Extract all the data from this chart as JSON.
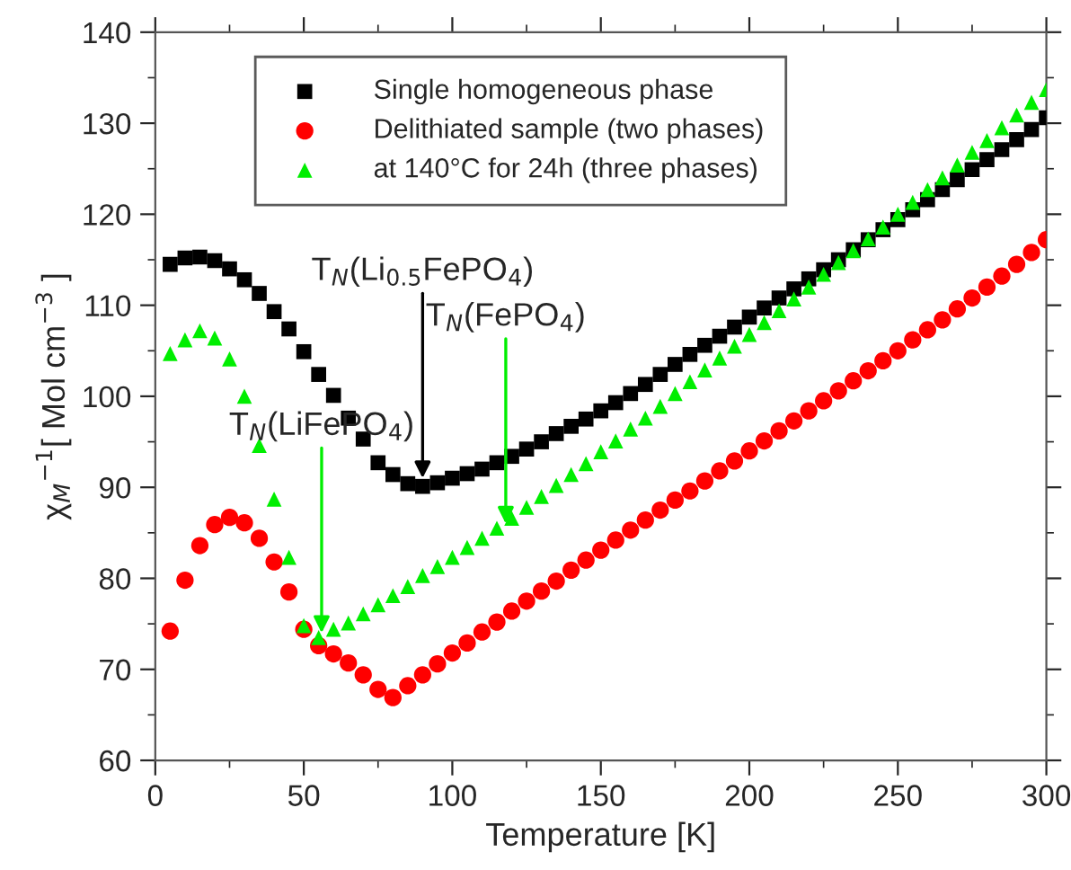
{
  "chart_data": {
    "type": "scatter",
    "xlabel": "Temperature [K]",
    "ylabel": "χ$_{M}$$^{−1}$[ Mol cm$^{−3}$ ]",
    "xlim": [
      0,
      300
    ],
    "xticks": [
      0,
      50,
      100,
      150,
      200,
      250,
      300
    ],
    "ylim": [
      60,
      140
    ],
    "yticks": [
      60,
      70,
      80,
      90,
      100,
      110,
      120,
      130,
      140
    ],
    "grid": false,
    "legend": "top",
    "series": [
      {
        "name": "Single homogeneous phase",
        "color": "#000000",
        "marker": "square",
        "x": [
          5,
          10,
          15,
          20,
          25,
          30,
          35,
          40,
          45,
          50,
          55,
          60,
          65,
          70,
          75,
          80,
          85,
          90,
          95,
          100,
          105,
          110,
          115,
          120,
          125,
          130,
          135,
          140,
          145,
          150,
          155,
          160,
          165,
          170,
          175,
          180,
          185,
          190,
          195,
          200,
          205,
          210,
          215,
          220,
          225,
          230,
          235,
          240,
          245,
          250,
          255,
          260,
          265,
          270,
          275,
          280,
          285,
          290,
          295,
          300
        ],
        "values": [
          114.5,
          115.2,
          115.3,
          114.9,
          114.0,
          112.8,
          111.3,
          109.3,
          107.4,
          104.9,
          102.4,
          100.1,
          97.6,
          95.3,
          92.7,
          91.4,
          90.4,
          90.1,
          90.5,
          91.0,
          91.5,
          92.0,
          92.7,
          93.4,
          94.2,
          95.0,
          95.9,
          96.7,
          97.5,
          98.4,
          99.3,
          100.3,
          101.3,
          102.4,
          103.5,
          104.6,
          105.6,
          106.6,
          107.6,
          108.7,
          109.7,
          110.8,
          111.8,
          112.9,
          113.9,
          115.0,
          116.1,
          117.2,
          118.3,
          119.4,
          120.5,
          121.6,
          122.7,
          123.8,
          124.9,
          126.0,
          127.1,
          128.2,
          129.3,
          130.6
        ]
      },
      {
        "name": "Delithiated sample (two phases)",
        "color": "#ff0000",
        "marker": "circle",
        "x": [
          5,
          10,
          15,
          20,
          25,
          30,
          35,
          40,
          45,
          50,
          55,
          60,
          65,
          70,
          75,
          80,
          85,
          90,
          95,
          100,
          105,
          110,
          115,
          120,
          125,
          130,
          135,
          140,
          145,
          150,
          155,
          160,
          165,
          170,
          175,
          180,
          185,
          190,
          195,
          200,
          205,
          210,
          215,
          220,
          225,
          230,
          235,
          240,
          245,
          250,
          255,
          260,
          265,
          270,
          275,
          280,
          285,
          290,
          295,
          300
        ],
        "values": [
          74.2,
          79.8,
          83.6,
          85.9,
          86.7,
          86.1,
          84.4,
          81.8,
          78.5,
          74.4,
          72.6,
          71.7,
          70.7,
          69.4,
          67.8,
          66.9,
          68.2,
          69.4,
          70.6,
          71.8,
          72.9,
          74.1,
          75.2,
          76.4,
          77.5,
          78.6,
          79.7,
          80.9,
          82.0,
          83.1,
          84.2,
          85.3,
          86.4,
          87.5,
          88.6,
          89.6,
          90.7,
          91.8,
          92.9,
          94.0,
          95.1,
          96.2,
          97.3,
          98.4,
          99.5,
          100.6,
          101.7,
          102.8,
          103.9,
          105.0,
          106.2,
          107.3,
          108.4,
          109.6,
          110.8,
          112.0,
          113.2,
          114.5,
          115.8,
          117.2
        ]
      },
      {
        "name": "at 140°C for 24h (three phases)",
        "color": "#00ee00",
        "marker": "triangle",
        "x": [
          5,
          10,
          15,
          20,
          25,
          30,
          35,
          40,
          45,
          50,
          55,
          60,
          65,
          70,
          75,
          80,
          85,
          90,
          95,
          100,
          105,
          110,
          115,
          120,
          125,
          130,
          135,
          140,
          145,
          150,
          155,
          160,
          165,
          170,
          175,
          180,
          185,
          190,
          195,
          200,
          205,
          210,
          215,
          220,
          225,
          230,
          235,
          240,
          245,
          250,
          255,
          260,
          265,
          270,
          275,
          280,
          285,
          290,
          295,
          300
        ],
        "values": [
          104.7,
          106.2,
          107.2,
          106.4,
          104.1,
          100.0,
          94.6,
          88.7,
          82.3,
          74.8,
          73.5,
          74.4,
          75.1,
          76.1,
          77.1,
          78.1,
          79.1,
          80.3,
          81.3,
          82.3,
          83.4,
          84.4,
          85.5,
          86.6,
          87.8,
          89.0,
          90.2,
          91.4,
          92.6,
          93.9,
          95.1,
          96.4,
          97.6,
          98.9,
          100.3,
          101.6,
          102.9,
          104.2,
          105.5,
          106.8,
          108.1,
          109.4,
          110.7,
          112.0,
          113.4,
          114.7,
          116.0,
          117.3,
          118.6,
          120.0,
          121.3,
          122.7,
          124.0,
          125.4,
          126.8,
          128.1,
          129.5,
          130.9,
          132.3,
          133.7
        ]
      }
    ],
    "annotations": [
      {
        "text": "T$_{N}$(Li$_{0.5}$FePO$_{4}$)",
        "x": 90,
        "y": 91
      },
      {
        "text": "T$_{N}$(FePO$_{4}$)",
        "x": 118,
        "y": 86
      },
      {
        "text": "T$_{N}$(LiFePO$_{4}$)",
        "x": 56,
        "y": 74
      }
    ]
  }
}
